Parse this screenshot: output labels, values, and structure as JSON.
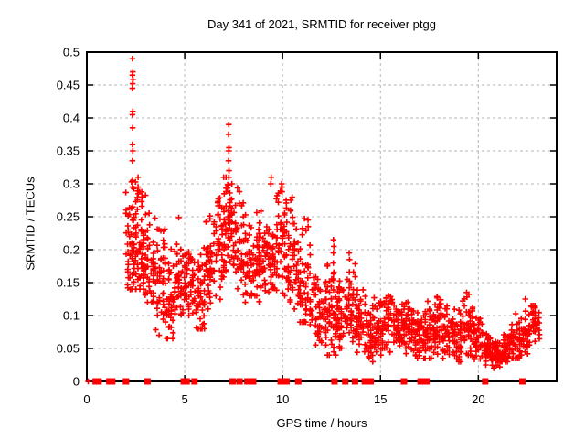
{
  "chart_data": {
    "type": "scatter",
    "title": "Day 341 of 2021, SRMTID for receiver ptgg",
    "xlabel": "GPS time / hours",
    "ylabel": "SRMTID / TECUs",
    "xlim": [
      0,
      24
    ],
    "ylim": [
      0,
      0.5
    ],
    "xticks": {
      "values": [
        0,
        5,
        10,
        15,
        20
      ],
      "labels": [
        "0",
        "5",
        "10",
        "15",
        "20"
      ]
    },
    "yticks": {
      "values": [
        0,
        0.05,
        0.1,
        0.15,
        0.2,
        0.25,
        0.3,
        0.35,
        0.4,
        0.45,
        0.5
      ],
      "labels": [
        "0",
        "0.05",
        "0.1",
        "0.15",
        "0.2",
        "0.25",
        "0.3",
        "0.35",
        "0.4",
        "0.45",
        "0.5"
      ]
    },
    "grid": true,
    "legend": "none",
    "marker": {
      "shape": "plus",
      "color": "#ff0000",
      "size": 7
    },
    "zero_marker": {
      "shape": "filled-square",
      "color": "#ff0000",
      "size": 7
    },
    "grid_color": "#b5b5b5",
    "border_color": "#000000",
    "seed": 1234,
    "cloud_segments_format": [
      "x_start",
      "x_end",
      "y_min",
      "y_max",
      "y_mode",
      "n_points"
    ],
    "cloud_segments": [
      [
        2.0,
        2.3,
        0.13,
        0.3,
        0.2,
        30
      ],
      [
        2.3,
        2.5,
        0.14,
        0.31,
        0.21,
        30
      ],
      [
        2.5,
        3.0,
        0.14,
        0.31,
        0.2,
        55
      ],
      [
        3.0,
        3.5,
        0.12,
        0.26,
        0.17,
        48
      ],
      [
        3.5,
        4.0,
        0.07,
        0.24,
        0.15,
        45
      ],
      [
        4.0,
        4.5,
        0.065,
        0.22,
        0.13,
        45
      ],
      [
        4.5,
        5.0,
        0.09,
        0.25,
        0.15,
        48
      ],
      [
        5.0,
        5.5,
        0.1,
        0.22,
        0.15,
        42
      ],
      [
        5.5,
        6.0,
        0.08,
        0.23,
        0.14,
        45
      ],
      [
        6.0,
        6.5,
        0.11,
        0.27,
        0.17,
        45
      ],
      [
        6.5,
        7.0,
        0.12,
        0.3,
        0.2,
        50
      ],
      [
        7.0,
        7.3,
        0.15,
        0.31,
        0.24,
        32
      ],
      [
        7.3,
        7.8,
        0.13,
        0.3,
        0.22,
        48
      ],
      [
        7.8,
        8.3,
        0.12,
        0.28,
        0.19,
        48
      ],
      [
        8.3,
        8.8,
        0.13,
        0.26,
        0.18,
        45
      ],
      [
        8.8,
        9.3,
        0.12,
        0.26,
        0.18,
        45
      ],
      [
        9.3,
        9.6,
        0.14,
        0.3,
        0.2,
        30
      ],
      [
        9.6,
        10.2,
        0.13,
        0.29,
        0.21,
        55
      ],
      [
        10.2,
        10.7,
        0.11,
        0.28,
        0.18,
        48
      ],
      [
        10.7,
        11.2,
        0.09,
        0.25,
        0.15,
        45
      ],
      [
        11.2,
        11.7,
        0.07,
        0.23,
        0.13,
        40
      ],
      [
        11.7,
        12.2,
        0.05,
        0.16,
        0.1,
        45
      ],
      [
        12.2,
        12.7,
        0.04,
        0.19,
        0.09,
        45
      ],
      [
        12.7,
        13.2,
        0.05,
        0.17,
        0.1,
        45
      ],
      [
        13.2,
        13.7,
        0.05,
        0.18,
        0.11,
        42
      ],
      [
        13.7,
        14.2,
        0.04,
        0.15,
        0.09,
        45
      ],
      [
        14.2,
        14.7,
        0.03,
        0.12,
        0.07,
        45
      ],
      [
        14.7,
        15.2,
        0.04,
        0.13,
        0.08,
        45
      ],
      [
        15.2,
        15.7,
        0.04,
        0.13,
        0.09,
        42
      ],
      [
        15.7,
        16.2,
        0.05,
        0.12,
        0.08,
        45
      ],
      [
        16.2,
        16.7,
        0.04,
        0.12,
        0.08,
        45
      ],
      [
        16.7,
        17.2,
        0.035,
        0.12,
        0.07,
        45
      ],
      [
        17.2,
        17.7,
        0.035,
        0.125,
        0.07,
        45
      ],
      [
        17.7,
        18.2,
        0.04,
        0.13,
        0.08,
        45
      ],
      [
        18.2,
        18.7,
        0.035,
        0.12,
        0.07,
        45
      ],
      [
        18.7,
        19.2,
        0.03,
        0.11,
        0.06,
        45
      ],
      [
        19.2,
        19.7,
        0.04,
        0.135,
        0.08,
        42
      ],
      [
        19.7,
        20.2,
        0.03,
        0.1,
        0.06,
        45
      ],
      [
        20.2,
        20.7,
        0.025,
        0.075,
        0.05,
        45
      ],
      [
        20.7,
        21.2,
        0.02,
        0.065,
        0.042,
        45
      ],
      [
        21.2,
        21.7,
        0.03,
        0.08,
        0.05,
        45
      ],
      [
        21.7,
        22.2,
        0.035,
        0.105,
        0.06,
        45
      ],
      [
        22.2,
        22.7,
        0.04,
        0.12,
        0.07,
        42
      ],
      [
        22.7,
        23.1,
        0.05,
        0.115,
        0.09,
        35
      ]
    ],
    "spike_points": [
      [
        2.33,
        0.49
      ],
      [
        2.35,
        0.47
      ],
      [
        2.33,
        0.465
      ],
      [
        2.36,
        0.458
      ],
      [
        2.34,
        0.452
      ],
      [
        2.33,
        0.445
      ],
      [
        2.35,
        0.41
      ],
      [
        2.33,
        0.405
      ],
      [
        2.34,
        0.385
      ],
      [
        2.33,
        0.36
      ],
      [
        2.35,
        0.35
      ],
      [
        2.33,
        0.335
      ],
      [
        2.34,
        0.305
      ],
      [
        2.33,
        0.295
      ],
      [
        2.35,
        0.265
      ],
      [
        2.34,
        0.245
      ],
      [
        2.62,
        0.31
      ],
      [
        2.62,
        0.295
      ],
      [
        2.63,
        0.285
      ],
      [
        7.25,
        0.39
      ],
      [
        7.24,
        0.375
      ],
      [
        7.26,
        0.355
      ],
      [
        7.25,
        0.35
      ],
      [
        7.24,
        0.335
      ],
      [
        7.26,
        0.32
      ],
      [
        7.25,
        0.31
      ],
      [
        9.42,
        0.31
      ],
      [
        9.4,
        0.3
      ],
      [
        9.95,
        0.3
      ],
      [
        9.97,
        0.295
      ],
      [
        11.3,
        0.245
      ],
      [
        11.31,
        0.235
      ],
      [
        12.6,
        0.215
      ],
      [
        12.62,
        0.205
      ],
      [
        12.6,
        0.195
      ],
      [
        13.4,
        0.195
      ],
      [
        13.42,
        0.185
      ],
      [
        19.4,
        0.135
      ],
      [
        19.42,
        0.128
      ],
      [
        22.4,
        0.125
      ]
    ],
    "zero_square_points_x": [
      0.45,
      0.6,
      1.15,
      1.3,
      2.0,
      3.1,
      4.95,
      5.1,
      5.5,
      7.45,
      7.8,
      8.2,
      8.5,
      9.9,
      10.05,
      10.2,
      10.8,
      12.65,
      13.2,
      13.7,
      14.2,
      14.35,
      14.5,
      16.2,
      17.05,
      17.2,
      17.35,
      20.35,
      22.25
    ],
    "zero_plus_points_x": [
      0.07
    ]
  }
}
